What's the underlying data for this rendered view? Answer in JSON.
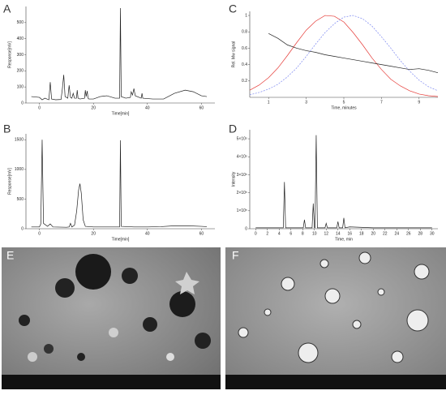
{
  "chart_data": [
    {
      "type": "line",
      "panel_label": "A",
      "xlabel": "Time[min]",
      "ylabel": "Response[mV]",
      "xlim": [
        -5,
        65
      ],
      "xticks": [
        0,
        20,
        40,
        60
      ],
      "ylim": [
        0,
        600
      ],
      "yticks": [
        0,
        100,
        200,
        300,
        400,
        500
      ],
      "x": [
        -3,
        0,
        1,
        2,
        3.5,
        4,
        4.5,
        6,
        8,
        8.5,
        9,
        9.5,
        10.5,
        11,
        11.5,
        12,
        12.5,
        13,
        13.7,
        14,
        14.3,
        15,
        16.7,
        17,
        17.3,
        17.7,
        18,
        18.3,
        20,
        22.5,
        25,
        28,
        29.7,
        30,
        30.3,
        32,
        33.7,
        34,
        34.5,
        35,
        35.5,
        37.7,
        38,
        38.3,
        42,
        46,
        50,
        54,
        57,
        60,
        62
      ],
      "series": [
        {
          "color": "#222",
          "values": [
            40,
            35,
            20,
            30,
            20,
            130,
            25,
            20,
            22,
            90,
            175,
            40,
            30,
            110,
            35,
            30,
            60,
            30,
            30,
            80,
            30,
            25,
            30,
            80,
            40,
            75,
            30,
            25,
            25,
            40,
            45,
            30,
            30,
            590,
            40,
            30,
            35,
            70,
            50,
            90,
            45,
            30,
            60,
            30,
            25,
            25,
            60,
            80,
            70,
            45,
            40
          ]
        }
      ]
    },
    {
      "type": "line",
      "panel_label": "B",
      "xlabel": "Time[min]",
      "ylabel": "Response[mV]",
      "xlim": [
        -5,
        65
      ],
      "xticks": [
        0,
        20,
        40,
        60
      ],
      "ylim": [
        0,
        1600
      ],
      "yticks": [
        0,
        500,
        1000,
        1500
      ],
      "x": [
        -3,
        0,
        0.5,
        1,
        1.5,
        3,
        4,
        5,
        10,
        11,
        11.5,
        12,
        13,
        13.8,
        14.5,
        15,
        15.5,
        16.2,
        17,
        20,
        29.7,
        30,
        30.3,
        35,
        40,
        45,
        50,
        55,
        60,
        62
      ],
      "series": [
        {
          "color": "#222",
          "values": [
            30,
            30,
            80,
            1500,
            90,
            40,
            80,
            30,
            25,
            30,
            90,
            30,
            60,
            300,
            650,
            760,
            600,
            150,
            40,
            30,
            30,
            1490,
            40,
            30,
            30,
            35,
            50,
            50,
            40,
            35
          ]
        }
      ]
    },
    {
      "type": "line",
      "panel_label": "C",
      "xlabel": "Time, minutes",
      "ylabel": "Rel. Mw signal",
      "xlim": [
        0,
        10
      ],
      "xticks": [
        1,
        3,
        5,
        7,
        9
      ],
      "ylim": [
        0,
        1.05
      ],
      "yticks": [
        0.2,
        0.4,
        0.6,
        0.8,
        1
      ],
      "x": [
        0,
        0.5,
        1,
        1.5,
        2,
        2.5,
        3,
        3.5,
        4,
        4.5,
        5,
        5.5,
        6,
        6.5,
        7,
        7.5,
        8,
        8.5,
        9,
        9.5,
        10
      ],
      "series": [
        {
          "color": "#e53935",
          "dash": false,
          "values": [
            0.087,
            0.15,
            0.24,
            0.36,
            0.51,
            0.67,
            0.82,
            0.93,
            1,
            0.99,
            0.92,
            0.79,
            0.64,
            0.48,
            0.34,
            0.22,
            0.14,
            0.08,
            0.04,
            0.02,
            0.01
          ]
        },
        {
          "color": "#7a86f0",
          "dash": true,
          "values": [
            0.03,
            0.06,
            0.1,
            0.16,
            0.25,
            0.36,
            0.5,
            0.65,
            0.79,
            0.9,
            0.98,
            1,
            0.96,
            0.87,
            0.74,
            0.6,
            0.45,
            0.32,
            0.21,
            0.13,
            0.08
          ]
        },
        {
          "color": "#222",
          "dash": false,
          "values": [
            null,
            null,
            0.78,
            0.72,
            0.64,
            0.6,
            0.57,
            0.55,
            0.52,
            0.5,
            0.48,
            0.46,
            0.44,
            0.42,
            0.4,
            0.38,
            0.36,
            0.34,
            0.35,
            0.33,
            0.3
          ]
        }
      ]
    },
    {
      "type": "line",
      "panel_label": "D",
      "xlabel": "Time, min",
      "ylabel": "Intensity",
      "xlim": [
        -1,
        31
      ],
      "xticks": [
        0,
        2,
        4,
        6,
        8,
        10,
        12,
        14,
        16,
        18,
        20,
        22,
        24,
        26,
        28,
        30
      ],
      "ylim": [
        0,
        5.5
      ],
      "yticks": [
        0,
        {
          "value": 1,
          "label": "1×10⁵"
        },
        {
          "value": 2,
          "label": "2×10⁵"
        },
        {
          "value": 3,
          "label": "3×10⁵"
        },
        {
          "value": 4,
          "label": "4×10⁵"
        },
        {
          "value": 5,
          "label": "5×10⁵"
        }
      ],
      "x": [
        0,
        4.7,
        4.9,
        5.1,
        8.1,
        8.3,
        8.5,
        9.6,
        9.8,
        10,
        10.1,
        10.3,
        10.5,
        11.8,
        12,
        12.2,
        13.8,
        14,
        14.2,
        14.8,
        15,
        15.2,
        16,
        20,
        25,
        30
      ],
      "series": [
        {
          "color": "#222",
          "values": [
            0.05,
            0.05,
            2.6,
            0.05,
            0.05,
            0.5,
            0.05,
            0.05,
            1.4,
            0.05,
            0.05,
            5.2,
            0.05,
            0.05,
            0.3,
            0.05,
            0.05,
            0.4,
            0.05,
            0.05,
            0.6,
            0.05,
            0.1,
            0.05,
            0.05,
            0.05
          ]
        }
      ]
    }
  ],
  "images": [
    {
      "panel_label": "E"
    },
    {
      "panel_label": "F"
    }
  ]
}
